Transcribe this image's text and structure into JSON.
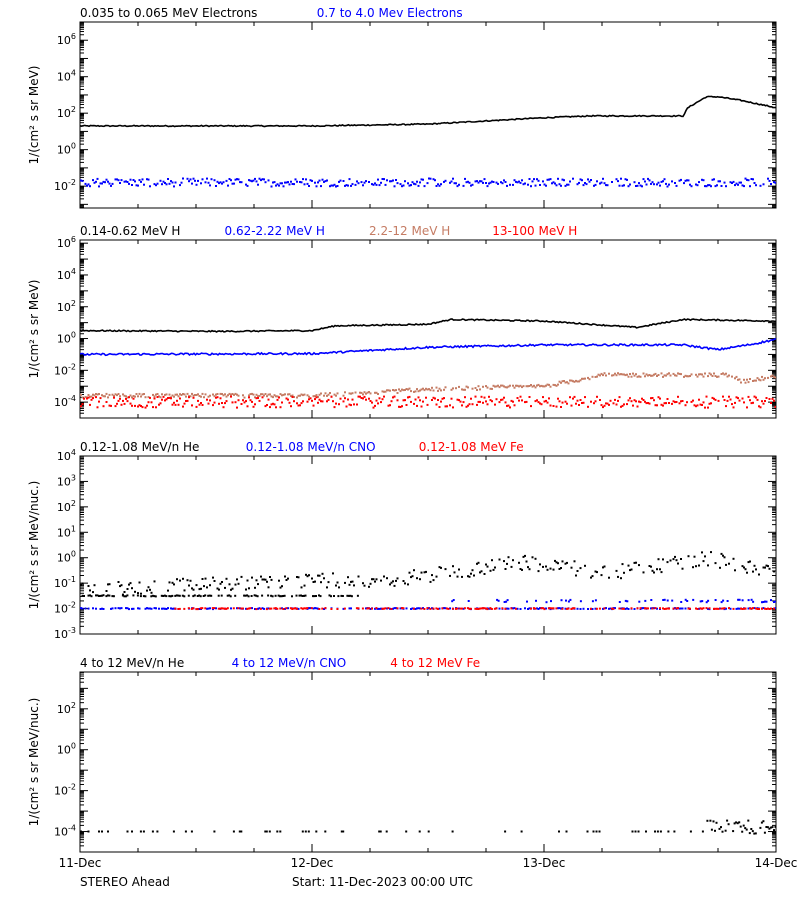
{
  "colors": {
    "black": "#000000",
    "blue": "#0000ff",
    "tan": "#c57c64",
    "red": "#ff0000"
  },
  "footer": {
    "left_label": "STEREO Ahead",
    "center_label": "Start: 11-Dec-2023 00:00 UTC"
  },
  "chart_data": [
    {
      "type": "scatter",
      "ylog": true,
      "ylim_exp": [
        -3.2,
        7.0
      ],
      "ylabel": "1/(cm² s sr MeV)",
      "ytick_exp": [
        -2,
        0,
        2,
        4,
        6
      ],
      "xlim": [
        "11-Dec",
        "14-Dec"
      ],
      "xticks": [
        "11-Dec",
        "12-Dec",
        "13-Dec",
        "14-Dec"
      ],
      "legend": [
        {
          "label": "0.035 to 0.065 MeV Electrons",
          "color": "black"
        },
        {
          "label": "0.7 to 4.0 Mev Electrons",
          "color": "blue"
        }
      ],
      "series": [
        {
          "color": "black",
          "style": "line",
          "noise": 0.03,
          "x": [
            0,
            0.5,
            1.0,
            1.5,
            2.0,
            2.2,
            2.6,
            2.62,
            2.7,
            2.75,
            2.85,
            3.0
          ],
          "y": [
            1.3,
            1.3,
            1.3,
            1.4,
            1.75,
            1.85,
            1.85,
            2.3,
            2.9,
            2.9,
            2.7,
            2.3
          ]
        },
        {
          "color": "blue",
          "style": "scatter",
          "noise": 0.22,
          "x": [
            0,
            3.0
          ],
          "y": [
            -1.8,
            -1.8
          ]
        }
      ]
    },
    {
      "type": "scatter",
      "ylog": true,
      "ylim_exp": [
        -5.0,
        6.2
      ],
      "ylabel": "1/(cm² s sr MeV)",
      "ytick_exp": [
        -4,
        -2,
        0,
        2,
        4,
        6
      ],
      "xlim": [
        "11-Dec",
        "14-Dec"
      ],
      "xticks": [
        "11-Dec",
        "12-Dec",
        "13-Dec",
        "14-Dec"
      ],
      "legend": [
        {
          "label": "0.14-0.62 MeV H",
          "color": "black"
        },
        {
          "label": "0.62-2.22 MeV H",
          "color": "blue"
        },
        {
          "label": "2.2-12 MeV H",
          "color": "tan"
        },
        {
          "label": "13-100 MeV H",
          "color": "red"
        }
      ],
      "series": [
        {
          "color": "black",
          "style": "line",
          "noise": 0.04,
          "x": [
            0,
            0.6,
            1.0,
            1.1,
            1.5,
            1.6,
            2.0,
            2.4,
            2.6,
            3.0
          ],
          "y": [
            0.5,
            0.45,
            0.5,
            0.8,
            0.9,
            1.2,
            1.1,
            0.7,
            1.2,
            1.1
          ]
        },
        {
          "color": "blue",
          "style": "line",
          "noise": 0.06,
          "x": [
            0,
            1.0,
            1.5,
            2.0,
            2.6,
            2.75,
            2.9,
            3.0
          ],
          "y": [
            -1.0,
            -0.95,
            -0.55,
            -0.4,
            -0.4,
            -0.7,
            -0.35,
            -0.05
          ]
        },
        {
          "color": "tan",
          "style": "scatter",
          "noise": 0.12,
          "x": [
            0,
            1.0,
            1.5,
            2.0,
            2.25,
            2.6,
            2.8,
            2.85,
            3.0
          ],
          "y": [
            -3.6,
            -3.6,
            -3.2,
            -3.0,
            -2.3,
            -2.3,
            -2.3,
            -2.7,
            -2.4
          ]
        },
        {
          "color": "red",
          "style": "scatter",
          "noise": 0.35,
          "x": [
            0,
            3.0
          ],
          "y": [
            -4.0,
            -4.0
          ]
        }
      ]
    },
    {
      "type": "scatter",
      "ylog": true,
      "ylim_exp": [
        -3.0,
        4.0
      ],
      "ylabel": "1/(cm² s sr MeV/nuc.)",
      "ytick_exp": [
        -3,
        -2,
        -1,
        0,
        1,
        2,
        3,
        4
      ],
      "xlim": [
        "11-Dec",
        "14-Dec"
      ],
      "xticks": [
        "11-Dec",
        "12-Dec",
        "13-Dec",
        "14-Dec"
      ],
      "legend": [
        {
          "label": "0.12-1.08 MeV/n He",
          "color": "black"
        },
        {
          "label": "0.12-1.08 MeV/n CNO",
          "color": "blue"
        },
        {
          "label": "0.12-1.08 MeV Fe",
          "color": "red"
        }
      ],
      "series": [
        {
          "color": "black",
          "style": "scatter",
          "noise": 0.3,
          "density": 0.6,
          "x": [
            0,
            0.8,
            1.4,
            1.9,
            2.3,
            2.7,
            3.0
          ],
          "y": [
            -1.2,
            -1.0,
            -0.8,
            -0.2,
            -0.6,
            0.0,
            -0.6
          ]
        },
        {
          "color": "black",
          "style": "scatter",
          "noise": 0.02,
          "density": 0.55,
          "x": [
            0,
            1.2
          ],
          "y": [
            -1.5,
            -1.5
          ]
        },
        {
          "color": "blue",
          "style": "scatter",
          "noise": 0.02,
          "density": 0.5,
          "x": [
            0,
            3.0
          ],
          "y": [
            -2.0,
            -2.0
          ]
        },
        {
          "color": "blue",
          "style": "scatter",
          "noise": 0.05,
          "density": 0.25,
          "x": [
            1.6,
            3.0
          ],
          "y": [
            -1.7,
            -1.7
          ]
        },
        {
          "color": "red",
          "style": "scatter",
          "noise": 0.02,
          "density": 0.4,
          "x": [
            0.4,
            3.0
          ],
          "y": [
            -2.0,
            -2.0
          ]
        }
      ]
    },
    {
      "type": "scatter",
      "ylog": true,
      "ylim_exp": [
        -5.0,
        3.8
      ],
      "ylabel": "1/(cm² s sr MeV/nuc.)",
      "ytick_exp": [
        -4,
        -2,
        0,
        2
      ],
      "xlim": [
        "11-Dec",
        "14-Dec"
      ],
      "xticks": [
        "11-Dec",
        "12-Dec",
        "13-Dec",
        "14-Dec"
      ],
      "legend": [
        {
          "label": "4 to 12 MeV/n He",
          "color": "black"
        },
        {
          "label": "4 to 12 MeV/n CNO",
          "color": "blue"
        },
        {
          "label": "4 to 12 MeV Fe",
          "color": "red"
        }
      ],
      "series": [
        {
          "color": "black",
          "style": "scatter",
          "noise": 0.0,
          "density": 0.12,
          "x": [
            0,
            2.7
          ],
          "y": [
            -4.0,
            -4.0
          ]
        },
        {
          "color": "black",
          "style": "scatter",
          "noise": 0.35,
          "density": 0.9,
          "x": [
            2.7,
            3.0
          ],
          "y": [
            -3.8,
            -3.8
          ]
        }
      ]
    }
  ]
}
